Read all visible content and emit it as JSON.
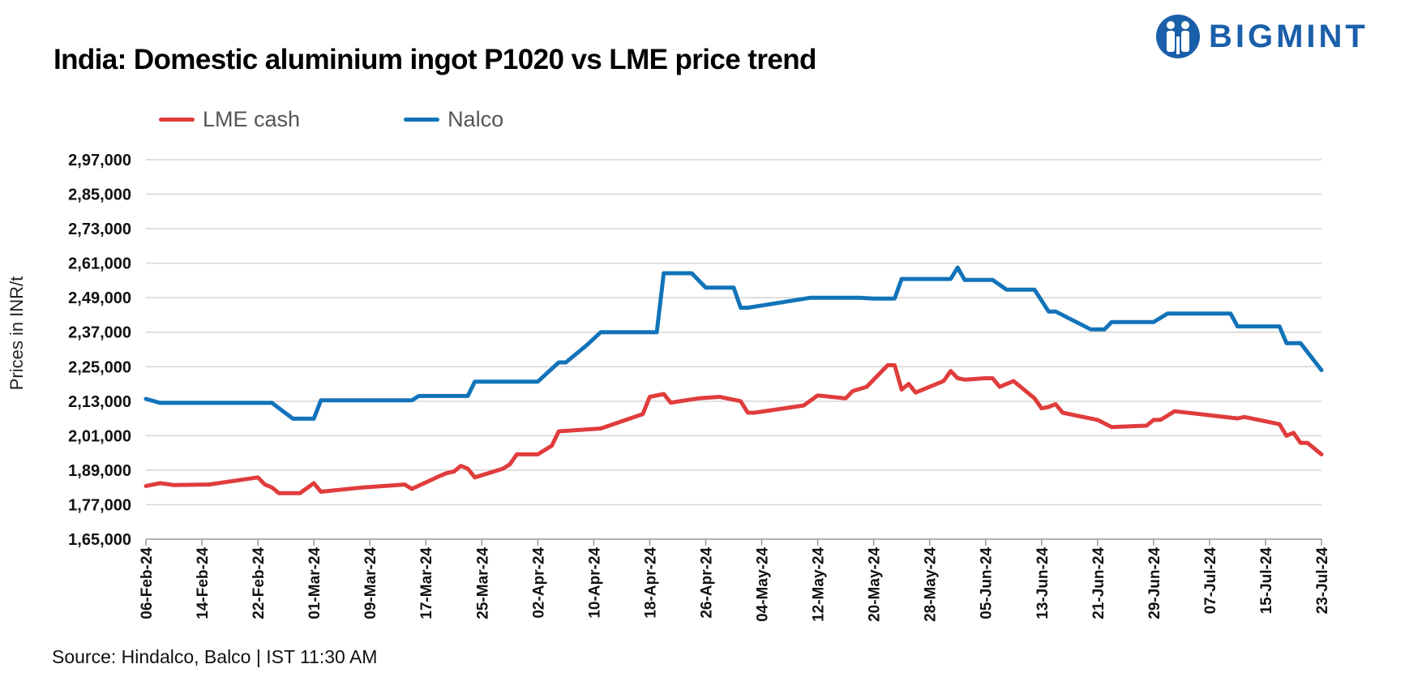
{
  "title": "India: Domestic aluminium ingot P1020 vs LME price trend",
  "logo": {
    "text": "BIGMINT",
    "icon": "bigmint-people-icon",
    "color": "#1a5faa"
  },
  "source": "Source: Hindalco, Balco | IST 11:30 AM",
  "chart_data": {
    "type": "line",
    "ylabel": "Prices in INR/t",
    "xlabel": "",
    "ylim": [
      165000,
      297000
    ],
    "yticks": [
      165000,
      177000,
      189000,
      201000,
      213000,
      225000,
      237000,
      249000,
      261000,
      273000,
      285000,
      297000
    ],
    "ytick_labels": [
      "1,65,000",
      "1,77,000",
      "1,89,000",
      "2,01,000",
      "2,13,000",
      "2,25,000",
      "2,37,000",
      "2,49,000",
      "2,61,000",
      "2,73,000",
      "2,85,000",
      "2,97,000"
    ],
    "x_range": [
      "2024-02-06",
      "2024-07-23"
    ],
    "xticks": [
      "2024-02-06",
      "2024-02-14",
      "2024-02-22",
      "2024-03-01",
      "2024-03-09",
      "2024-03-17",
      "2024-03-25",
      "2024-04-02",
      "2024-04-10",
      "2024-04-18",
      "2024-04-26",
      "2024-05-04",
      "2024-05-12",
      "2024-05-20",
      "2024-05-28",
      "2024-06-05",
      "2024-06-13",
      "2024-06-21",
      "2024-06-29",
      "2024-07-07",
      "2024-07-15",
      "2024-07-23"
    ],
    "xtick_labels": [
      "06-Feb-24",
      "14-Feb-24",
      "22-Feb-24",
      "01-Mar-24",
      "09-Mar-24",
      "17-Mar-24",
      "25-Mar-24",
      "02-Apr-24",
      "10-Apr-24",
      "18-Apr-24",
      "26-Apr-24",
      "04-May-24",
      "12-May-24",
      "20-May-24",
      "28-May-24",
      "05-Jun-24",
      "13-Jun-24",
      "21-Jun-24",
      "29-Jun-24",
      "07-Jul-24",
      "15-Jul-24",
      "23-Jul-24"
    ],
    "grid": true,
    "legend_position": "top-left",
    "series": [
      {
        "name": "LME cash",
        "color": "#e03c3c",
        "points": [
          [
            "2024-02-06",
            183500
          ],
          [
            "2024-02-08",
            184500
          ],
          [
            "2024-02-10",
            183800
          ],
          [
            "2024-02-15",
            184000
          ],
          [
            "2024-02-22",
            186500
          ],
          [
            "2024-02-23",
            184000
          ],
          [
            "2024-02-24",
            183000
          ],
          [
            "2024-02-25",
            181000
          ],
          [
            "2024-02-28",
            181000
          ],
          [
            "2024-03-01",
            184500
          ],
          [
            "2024-03-02",
            181500
          ],
          [
            "2024-03-08",
            183000
          ],
          [
            "2024-03-14",
            184000
          ],
          [
            "2024-03-15",
            182500
          ],
          [
            "2024-03-19",
            187000
          ],
          [
            "2024-03-20",
            188000
          ],
          [
            "2024-03-21",
            188500
          ],
          [
            "2024-03-22",
            190500
          ],
          [
            "2024-03-23",
            189500
          ],
          [
            "2024-03-24",
            186500
          ],
          [
            "2024-03-28",
            189500
          ],
          [
            "2024-03-29",
            191000
          ],
          [
            "2024-03-30",
            194500
          ],
          [
            "2024-04-02",
            194500
          ],
          [
            "2024-04-04",
            197500
          ],
          [
            "2024-04-05",
            202500
          ],
          [
            "2024-04-11",
            203500
          ],
          [
            "2024-04-17",
            208500
          ],
          [
            "2024-04-18",
            214500
          ],
          [
            "2024-04-20",
            215500
          ],
          [
            "2024-04-21",
            212500
          ],
          [
            "2024-04-25",
            214000
          ],
          [
            "2024-04-28",
            214500
          ],
          [
            "2024-05-01",
            213000
          ],
          [
            "2024-05-02",
            209000
          ],
          [
            "2024-05-03",
            209000
          ],
          [
            "2024-05-10",
            211500
          ],
          [
            "2024-05-12",
            215000
          ],
          [
            "2024-05-16",
            214000
          ],
          [
            "2024-05-17",
            216500
          ],
          [
            "2024-05-19",
            218000
          ],
          [
            "2024-05-22",
            225500
          ],
          [
            "2024-05-23",
            225500
          ],
          [
            "2024-05-24",
            217000
          ],
          [
            "2024-05-25",
            219000
          ],
          [
            "2024-05-26",
            216000
          ],
          [
            "2024-05-30",
            220000
          ],
          [
            "2024-05-31",
            223500
          ],
          [
            "2024-06-01",
            221000
          ],
          [
            "2024-06-02",
            220500
          ],
          [
            "2024-06-05",
            221000
          ],
          [
            "2024-06-06",
            221000
          ],
          [
            "2024-06-07",
            218000
          ],
          [
            "2024-06-09",
            220000
          ],
          [
            "2024-06-12",
            214000
          ],
          [
            "2024-06-13",
            210500
          ],
          [
            "2024-06-14",
            211000
          ],
          [
            "2024-06-15",
            212000
          ],
          [
            "2024-06-16",
            209000
          ],
          [
            "2024-06-21",
            206500
          ],
          [
            "2024-06-23",
            204000
          ],
          [
            "2024-06-28",
            204500
          ],
          [
            "2024-06-29",
            206500
          ],
          [
            "2024-06-30",
            206500
          ],
          [
            "2024-07-02",
            209500
          ],
          [
            "2024-07-11",
            207000
          ],
          [
            "2024-07-12",
            207500
          ],
          [
            "2024-07-17",
            205000
          ],
          [
            "2024-07-18",
            201000
          ],
          [
            "2024-07-19",
            202000
          ],
          [
            "2024-07-20",
            198500
          ],
          [
            "2024-07-21",
            198500
          ],
          [
            "2024-07-23",
            194500
          ]
        ]
      },
      {
        "name": "Nalco",
        "color": "#1273b9",
        "points": [
          [
            "2024-02-06",
            213800
          ],
          [
            "2024-02-08",
            212400
          ],
          [
            "2024-02-24",
            212400
          ],
          [
            "2024-02-27",
            206900
          ],
          [
            "2024-03-01",
            206900
          ],
          [
            "2024-03-02",
            213300
          ],
          [
            "2024-03-15",
            213300
          ],
          [
            "2024-03-16",
            214800
          ],
          [
            "2024-03-23",
            214800
          ],
          [
            "2024-03-24",
            219800
          ],
          [
            "2024-04-02",
            219800
          ],
          [
            "2024-04-05",
            226500
          ],
          [
            "2024-04-06",
            226500
          ],
          [
            "2024-04-09",
            232500
          ],
          [
            "2024-04-11",
            237000
          ],
          [
            "2024-04-19",
            237000
          ],
          [
            "2024-04-20",
            257500
          ],
          [
            "2024-04-24",
            257500
          ],
          [
            "2024-04-26",
            252500
          ],
          [
            "2024-04-30",
            252500
          ],
          [
            "2024-05-01",
            245500
          ],
          [
            "2024-05-02",
            245500
          ],
          [
            "2024-05-11",
            249000
          ],
          [
            "2024-05-18",
            249000
          ],
          [
            "2024-05-20",
            248700
          ],
          [
            "2024-05-23",
            248700
          ],
          [
            "2024-05-24",
            255500
          ],
          [
            "2024-05-31",
            255500
          ],
          [
            "2024-06-01",
            259500
          ],
          [
            "2024-06-02",
            255200
          ],
          [
            "2024-06-06",
            255200
          ],
          [
            "2024-06-08",
            251800
          ],
          [
            "2024-06-12",
            251800
          ],
          [
            "2024-06-14",
            244200
          ],
          [
            "2024-06-15",
            244200
          ],
          [
            "2024-06-20",
            238000
          ],
          [
            "2024-06-22",
            238000
          ],
          [
            "2024-06-23",
            240500
          ],
          [
            "2024-06-29",
            240500
          ],
          [
            "2024-07-01",
            243500
          ],
          [
            "2024-07-10",
            243500
          ],
          [
            "2024-07-11",
            239000
          ],
          [
            "2024-07-17",
            239000
          ],
          [
            "2024-07-18",
            233200
          ],
          [
            "2024-07-20",
            233200
          ],
          [
            "2024-07-23",
            223800
          ]
        ]
      }
    ]
  }
}
